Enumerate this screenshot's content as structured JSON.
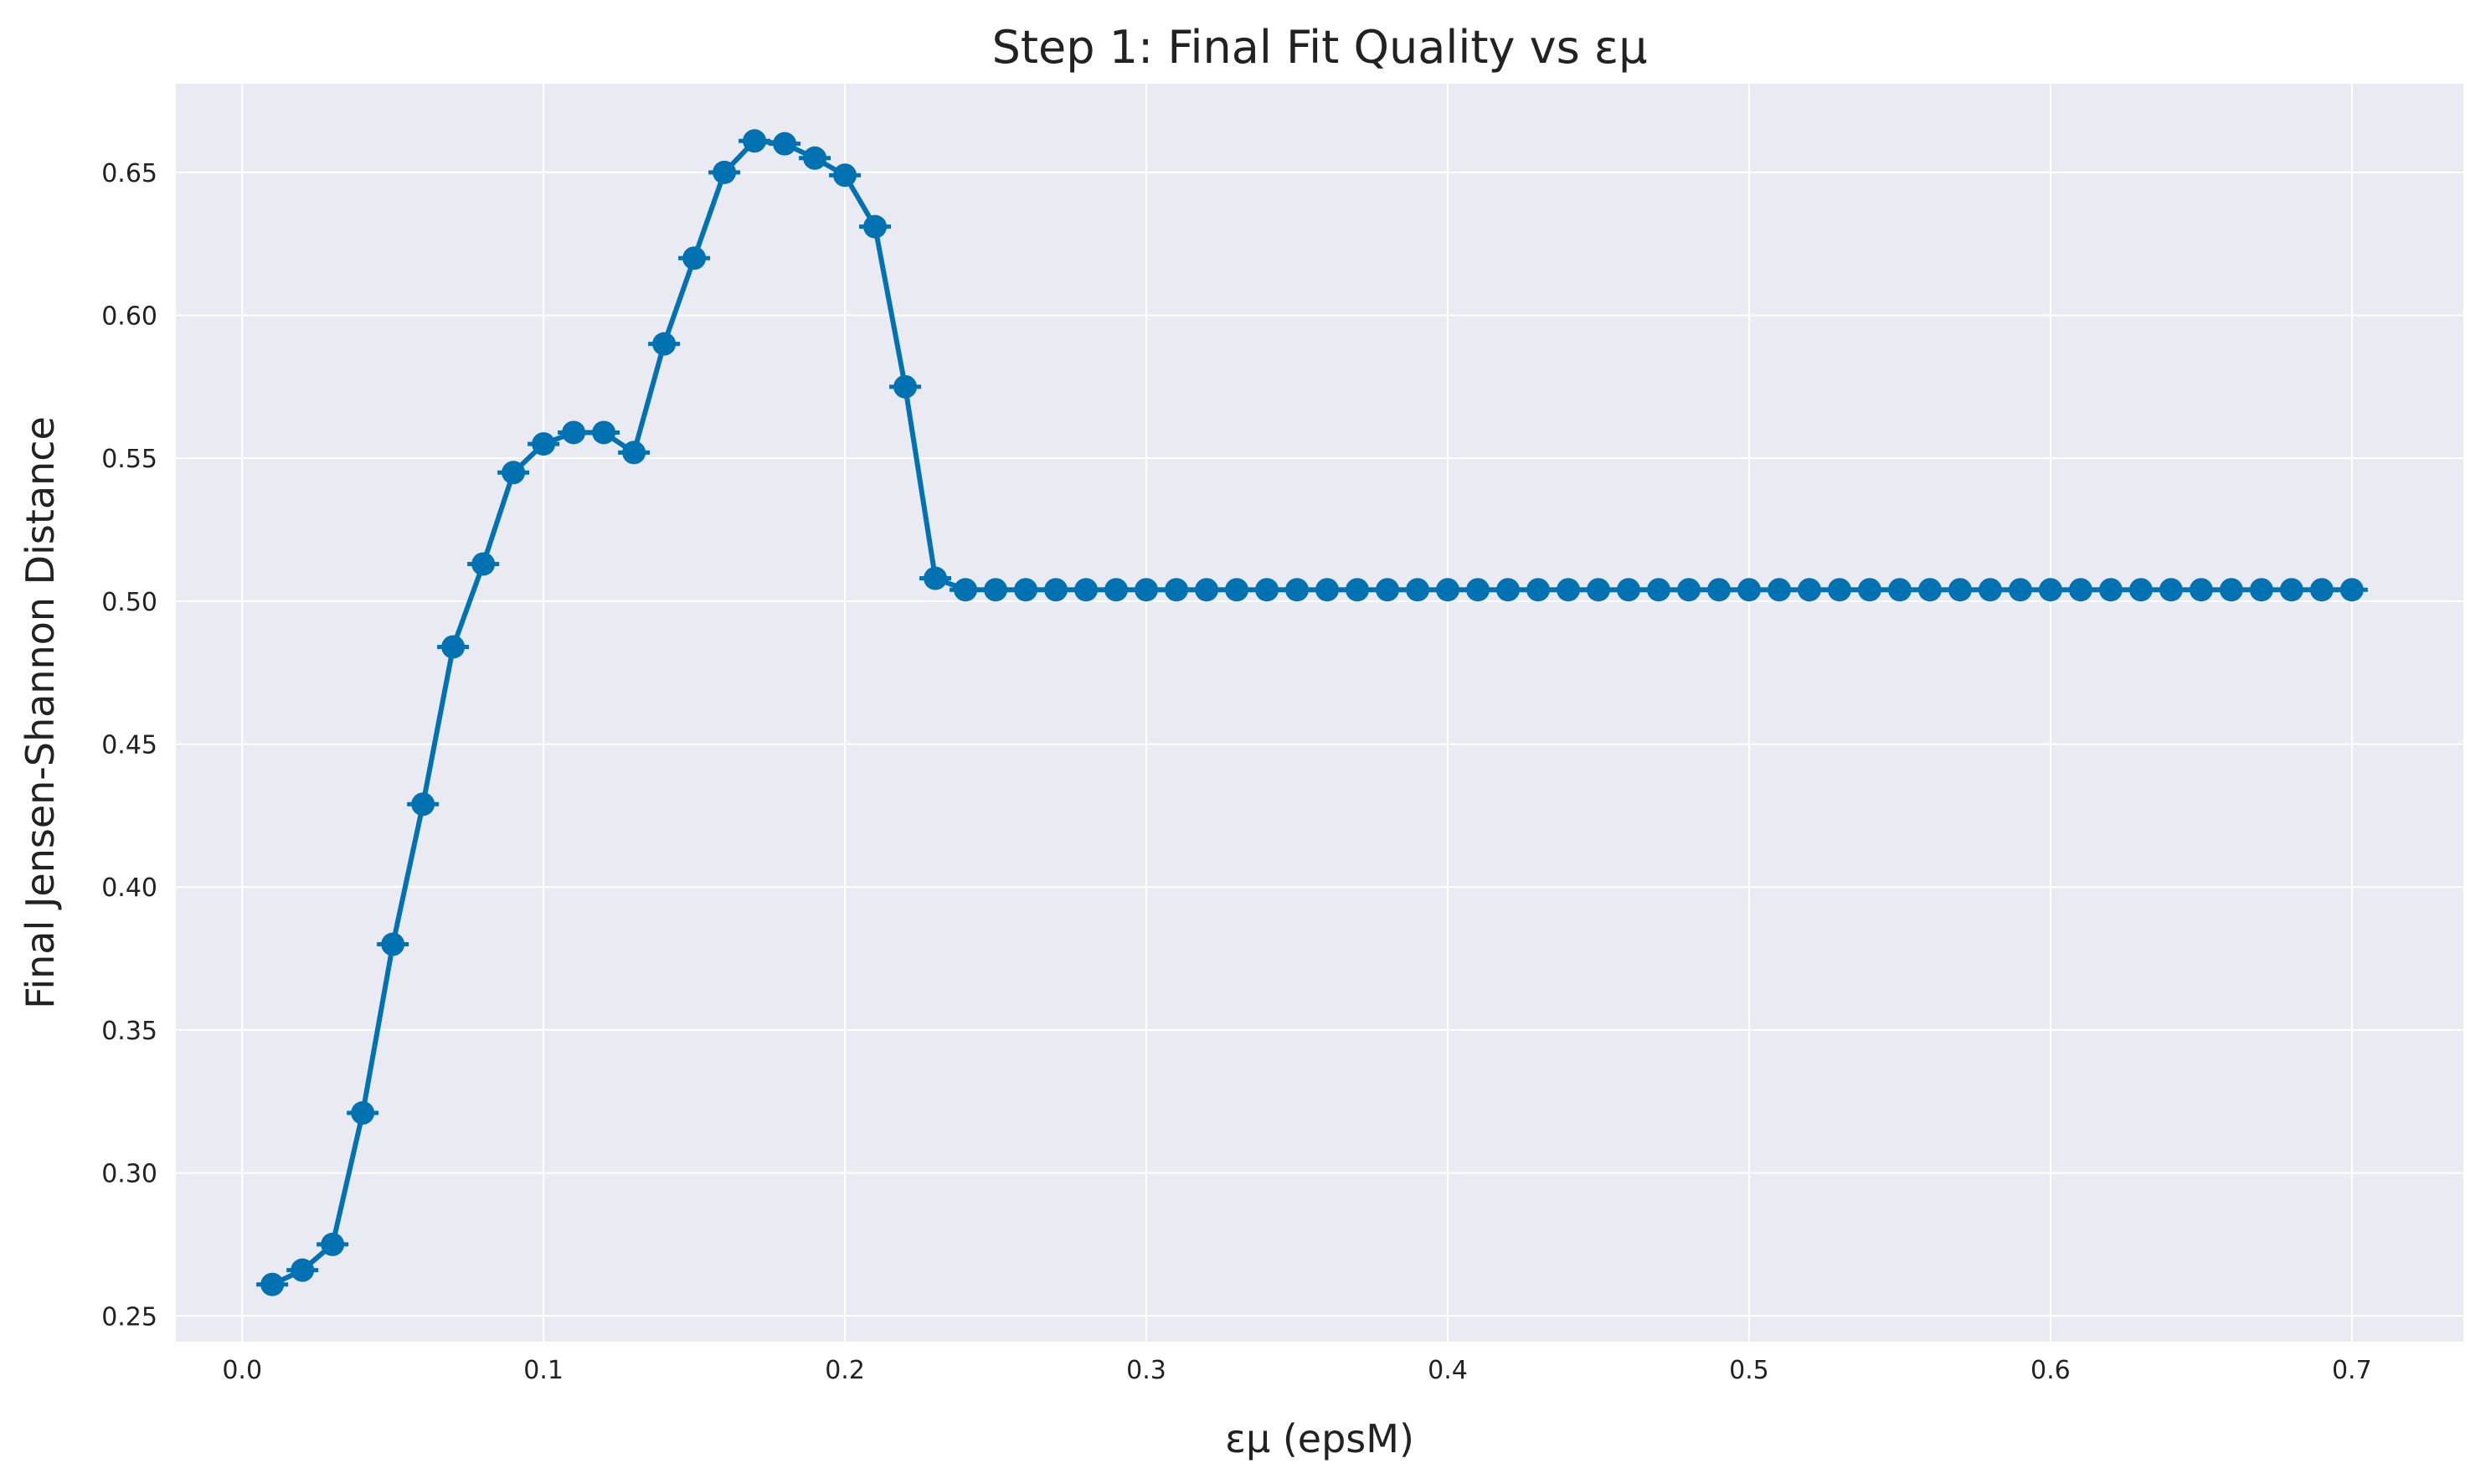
{
  "chart_data": {
    "type": "line",
    "title": "Step 1: Final Fit Quality vs εμ",
    "xlabel": "εμ (epsM)",
    "ylabel": "Final Jensen-Shannon Distance",
    "xlim": [
      -0.022,
      0.737
    ],
    "ylim": [
      0.241,
      0.681
    ],
    "xticks": [
      0.0,
      0.1,
      0.2,
      0.3,
      0.4,
      0.5,
      0.6,
      0.7
    ],
    "xtick_labels": [
      "0.0",
      "0.1",
      "0.2",
      "0.3",
      "0.4",
      "0.5",
      "0.6",
      "0.7"
    ],
    "yticks": [
      0.25,
      0.3,
      0.35,
      0.4,
      0.45,
      0.5,
      0.55,
      0.6,
      0.65
    ],
    "ytick_labels": [
      "0.25",
      "0.30",
      "0.35",
      "0.40",
      "0.45",
      "0.50",
      "0.55",
      "0.60",
      "0.65"
    ],
    "grid": true,
    "background_color": "#EAEAF2",
    "line_color": "#0072B2",
    "series": [
      {
        "x": [
          0.01,
          0.02,
          0.03,
          0.04,
          0.05,
          0.06,
          0.07,
          0.08,
          0.09,
          0.1,
          0.11,
          0.12,
          0.13,
          0.14,
          0.15,
          0.16,
          0.17,
          0.18,
          0.19,
          0.2,
          0.21,
          0.22,
          0.23,
          0.24,
          0.25,
          0.26,
          0.27,
          0.28,
          0.29,
          0.3,
          0.31,
          0.32,
          0.33,
          0.34,
          0.35,
          0.36,
          0.37,
          0.38,
          0.39,
          0.4,
          0.41,
          0.42,
          0.43,
          0.44,
          0.45,
          0.46,
          0.47,
          0.48,
          0.49,
          0.5,
          0.51,
          0.52,
          0.53,
          0.54,
          0.55,
          0.56,
          0.57,
          0.58,
          0.59,
          0.6,
          0.61,
          0.62,
          0.63,
          0.64,
          0.65,
          0.66,
          0.67,
          0.68,
          0.69,
          0.7
        ],
        "y": [
          0.261,
          0.266,
          0.275,
          0.321,
          0.38,
          0.429,
          0.484,
          0.513,
          0.545,
          0.555,
          0.559,
          0.559,
          0.552,
          0.59,
          0.62,
          0.65,
          0.661,
          0.66,
          0.655,
          0.649,
          0.631,
          0.575,
          0.508,
          0.504,
          0.504,
          0.504,
          0.504,
          0.504,
          0.504,
          0.504,
          0.504,
          0.504,
          0.504,
          0.504,
          0.504,
          0.504,
          0.504,
          0.504,
          0.504,
          0.504,
          0.504,
          0.504,
          0.504,
          0.504,
          0.504,
          0.504,
          0.504,
          0.504,
          0.504,
          0.504,
          0.504,
          0.504,
          0.504,
          0.504,
          0.504,
          0.504,
          0.504,
          0.504,
          0.504,
          0.504,
          0.504,
          0.504,
          0.504,
          0.504,
          0.504,
          0.504,
          0.504,
          0.504,
          0.504,
          0.504
        ]
      }
    ]
  }
}
